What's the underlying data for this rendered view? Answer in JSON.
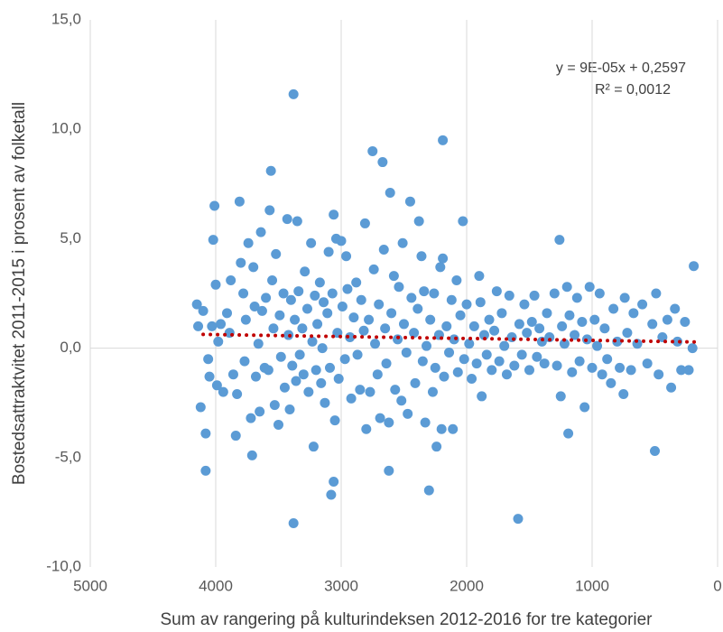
{
  "chart_data": {
    "type": "scatter",
    "x_label": "Sum av rangering på kulturindeksen 2012-2016 for tre kategorier",
    "y_label": "Bostedsattraktvitet 2011-2015 i prosent av folketall",
    "annotations": [
      "y = 9E-05x + 0,2597",
      "R² = 0,0012"
    ],
    "xlim": [
      5000,
      0
    ],
    "ylim": [
      -10,
      15
    ],
    "xticks": [
      5000,
      4000,
      3000,
      2000,
      1000,
      0
    ],
    "yticks": [
      {
        "value": -10,
        "label": "-10,0"
      },
      {
        "value": -5,
        "label": "-5,0"
      },
      {
        "value": 0,
        "label": "0,0"
      },
      {
        "value": 5,
        "label": "5,0"
      },
      {
        "value": 10,
        "label": "10,0"
      },
      {
        "value": 15,
        "label": "15,0"
      }
    ],
    "grid": true,
    "color": "#5b9bd5",
    "x": [
      4150,
      4140,
      4120,
      4100,
      4080,
      4080,
      4060,
      4050,
      4030,
      4020,
      4010,
      4000,
      3990,
      3980,
      3960,
      3940,
      3910,
      3890,
      3880,
      3860,
      3840,
      3830,
      3810,
      3800,
      3780,
      3770,
      3760,
      3740,
      3720,
      3710,
      3700,
      3690,
      3680,
      3660,
      3650,
      3640,
      3630,
      3610,
      3600,
      3580,
      3570,
      3560,
      3550,
      3540,
      3530,
      3520,
      3500,
      3490,
      3480,
      3460,
      3450,
      3430,
      3420,
      3410,
      3400,
      3390,
      3380,
      3380,
      3370,
      3360,
      3350,
      3340,
      3330,
      3310,
      3300,
      3290,
      3270,
      3260,
      3240,
      3230,
      3220,
      3210,
      3200,
      3190,
      3170,
      3160,
      3150,
      3140,
      3130,
      3110,
      3100,
      3090,
      3080,
      3070,
      3060,
      3060,
      3050,
      3040,
      3030,
      3020,
      3000,
      2990,
      2970,
      2960,
      2950,
      2930,
      2920,
      2900,
      2880,
      2870,
      2850,
      2840,
      2820,
      2810,
      2800,
      2780,
      2770,
      2750,
      2740,
      2730,
      2710,
      2700,
      2690,
      2670,
      2660,
      2650,
      2640,
      2620,
      2620,
      2610,
      2600,
      2580,
      2570,
      2550,
      2540,
      2520,
      2510,
      2500,
      2480,
      2470,
      2450,
      2440,
      2420,
      2410,
      2390,
      2380,
      2360,
      2350,
      2340,
      2330,
      2320,
      2300,
      2290,
      2270,
      2260,
      2250,
      2240,
      2220,
      2210,
      2200,
      2190,
      2190,
      2180,
      2160,
      2140,
      2120,
      2110,
      2100,
      2080,
      2070,
      2050,
      2030,
      2020,
      2000,
      1980,
      1960,
      1940,
      1920,
      1900,
      1890,
      1880,
      1860,
      1840,
      1820,
      1800,
      1780,
      1760,
      1740,
      1720,
      1700,
      1680,
      1660,
      1640,
      1620,
      1590,
      1580,
      1560,
      1540,
      1520,
      1500,
      1480,
      1460,
      1440,
      1420,
      1400,
      1380,
      1360,
      1340,
      1300,
      1280,
      1260,
      1250,
      1240,
      1220,
      1200,
      1190,
      1180,
      1160,
      1140,
      1120,
      1100,
      1080,
      1060,
      1040,
      1020,
      1000,
      980,
      960,
      940,
      920,
      900,
      880,
      850,
      830,
      800,
      780,
      750,
      740,
      720,
      690,
      670,
      640,
      600,
      560,
      520,
      500,
      490,
      470,
      440,
      400,
      370,
      340,
      320,
      290,
      260,
      230,
      200,
      190
    ],
    "values": [
      2.0,
      1.0,
      -2.7,
      1.7,
      -3.9,
      -5.6,
      -0.5,
      -1.3,
      1.0,
      4.95,
      6.5,
      2.9,
      -1.7,
      0.3,
      1.1,
      -2.0,
      1.6,
      0.7,
      3.1,
      -1.2,
      -4.0,
      -2.1,
      6.7,
      3.9,
      2.5,
      -0.6,
      1.3,
      4.8,
      -3.2,
      -4.9,
      3.7,
      1.9,
      -1.3,
      0.2,
      -2.9,
      5.3,
      1.7,
      -0.9,
      2.3,
      -1.0,
      6.3,
      8.1,
      3.1,
      0.9,
      -2.6,
      4.3,
      -3.5,
      1.5,
      -0.4,
      2.5,
      -1.8,
      5.9,
      0.6,
      -2.8,
      2.2,
      -0.8,
      11.6,
      -8.0,
      1.3,
      -1.5,
      5.8,
      2.6,
      -0.3,
      0.9,
      -1.2,
      3.5,
      1.8,
      -2.0,
      4.8,
      0.3,
      -4.5,
      2.4,
      -1.0,
      1.1,
      3.0,
      -1.6,
      0.0,
      2.1,
      -2.5,
      1.6,
      4.4,
      -0.9,
      -6.7,
      2.5,
      6.1,
      -6.1,
      -3.3,
      5.0,
      0.7,
      -1.4,
      4.9,
      1.9,
      -0.5,
      4.2,
      2.7,
      0.5,
      -2.3,
      1.4,
      3.0,
      -0.3,
      -1.9,
      2.2,
      0.8,
      5.7,
      -3.7,
      1.3,
      -2.0,
      9.0,
      3.6,
      0.2,
      -1.2,
      2.0,
      -3.2,
      8.5,
      4.5,
      0.9,
      -0.7,
      -5.6,
      -3.4,
      7.1,
      1.6,
      3.3,
      -1.9,
      0.4,
      2.8,
      -2.4,
      4.8,
      1.1,
      -0.2,
      -3.0,
      6.7,
      2.3,
      0.7,
      -1.6,
      1.8,
      5.8,
      4.2,
      -0.6,
      2.6,
      -3.4,
      0.1,
      -6.5,
      1.3,
      -2.0,
      2.5,
      -0.9,
      -4.5,
      0.6,
      3.7,
      -3.7,
      9.5,
      4.1,
      -1.3,
      1.0,
      -0.2,
      2.2,
      -3.7,
      0.4,
      3.1,
      -1.1,
      1.5,
      5.8,
      -0.5,
      2.0,
      0.2,
      -1.4,
      1.0,
      -0.7,
      3.3,
      2.1,
      -2.2,
      0.6,
      -0.3,
      1.3,
      -1.0,
      0.8,
      2.6,
      -0.6,
      1.6,
      0.1,
      -1.2,
      2.4,
      0.5,
      -0.8,
      -7.8,
      1.1,
      -0.3,
      2.0,
      0.7,
      -1.0,
      1.2,
      2.4,
      -0.4,
      0.9,
      0.3,
      -0.7,
      1.6,
      0.5,
      2.5,
      -0.8,
      4.95,
      -2.2,
      1.0,
      0.2,
      2.8,
      -3.9,
      1.5,
      -1.1,
      0.6,
      2.3,
      -0.6,
      1.2,
      -2.7,
      0.4,
      2.8,
      -0.9,
      1.3,
      0.1,
      2.5,
      -1.2,
      0.9,
      -0.5,
      -1.6,
      1.8,
      0.3,
      -0.9,
      -2.1,
      2.3,
      0.7,
      -1.0,
      1.6,
      0.2,
      2.0,
      -0.7,
      1.1,
      -4.7,
      2.5,
      -1.2,
      0.5,
      1.3,
      -1.8,
      1.8,
      0.3,
      -1.0,
      1.2,
      -1.0,
      0.0,
      3.75
    ],
    "trendline": {
      "x": [
        4100,
        180
      ],
      "values": [
        0.63,
        0.28
      ],
      "color": "#c00000"
    }
  }
}
